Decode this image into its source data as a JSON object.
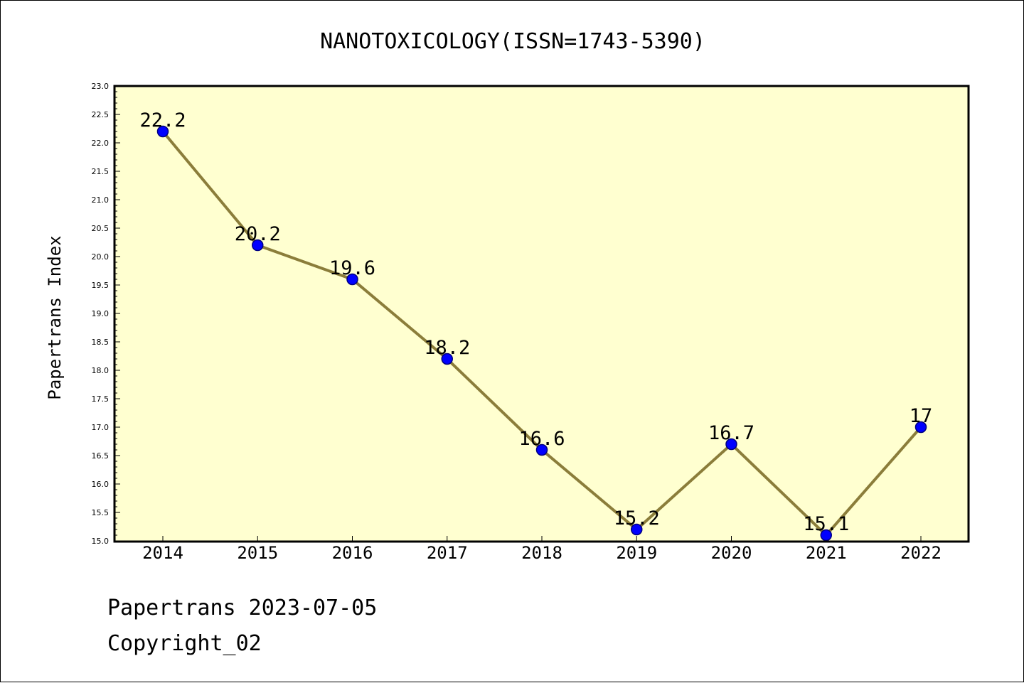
{
  "chart_data": {
    "type": "line",
    "title": "NANOTOXICOLOGY(ISSN=1743-5390)",
    "xlabel": "",
    "ylabel": "Papertrans Index",
    "categories": [
      "2014",
      "2015",
      "2016",
      "2017",
      "2018",
      "2019",
      "2020",
      "2021",
      "2022"
    ],
    "values": [
      22.2,
      20.2,
      19.6,
      18.2,
      16.6,
      15.2,
      16.7,
      15.1,
      17
    ],
    "data_labels": [
      "22.2",
      "20.2",
      "19.6",
      "18.2",
      "16.6",
      "15.2",
      "16.7",
      "15.1",
      "17"
    ],
    "ylim": [
      15.0,
      23.0
    ],
    "yticks": [
      "15.0",
      "15.5",
      "16.0",
      "16.5",
      "17.0",
      "17.5",
      "18.0",
      "18.5",
      "19.0",
      "19.5",
      "20.0",
      "20.5",
      "21.0",
      "21.5",
      "22.0",
      "22.5",
      "23.0"
    ],
    "grid": false,
    "colors": {
      "plot_background": "#ffffd0",
      "line": "#8b7d3a",
      "marker": "#0000ff",
      "marker_edge": "#000080"
    }
  },
  "footer": {
    "source": "Papertrans 2023-07-05",
    "copyright": "Copyright_02"
  }
}
